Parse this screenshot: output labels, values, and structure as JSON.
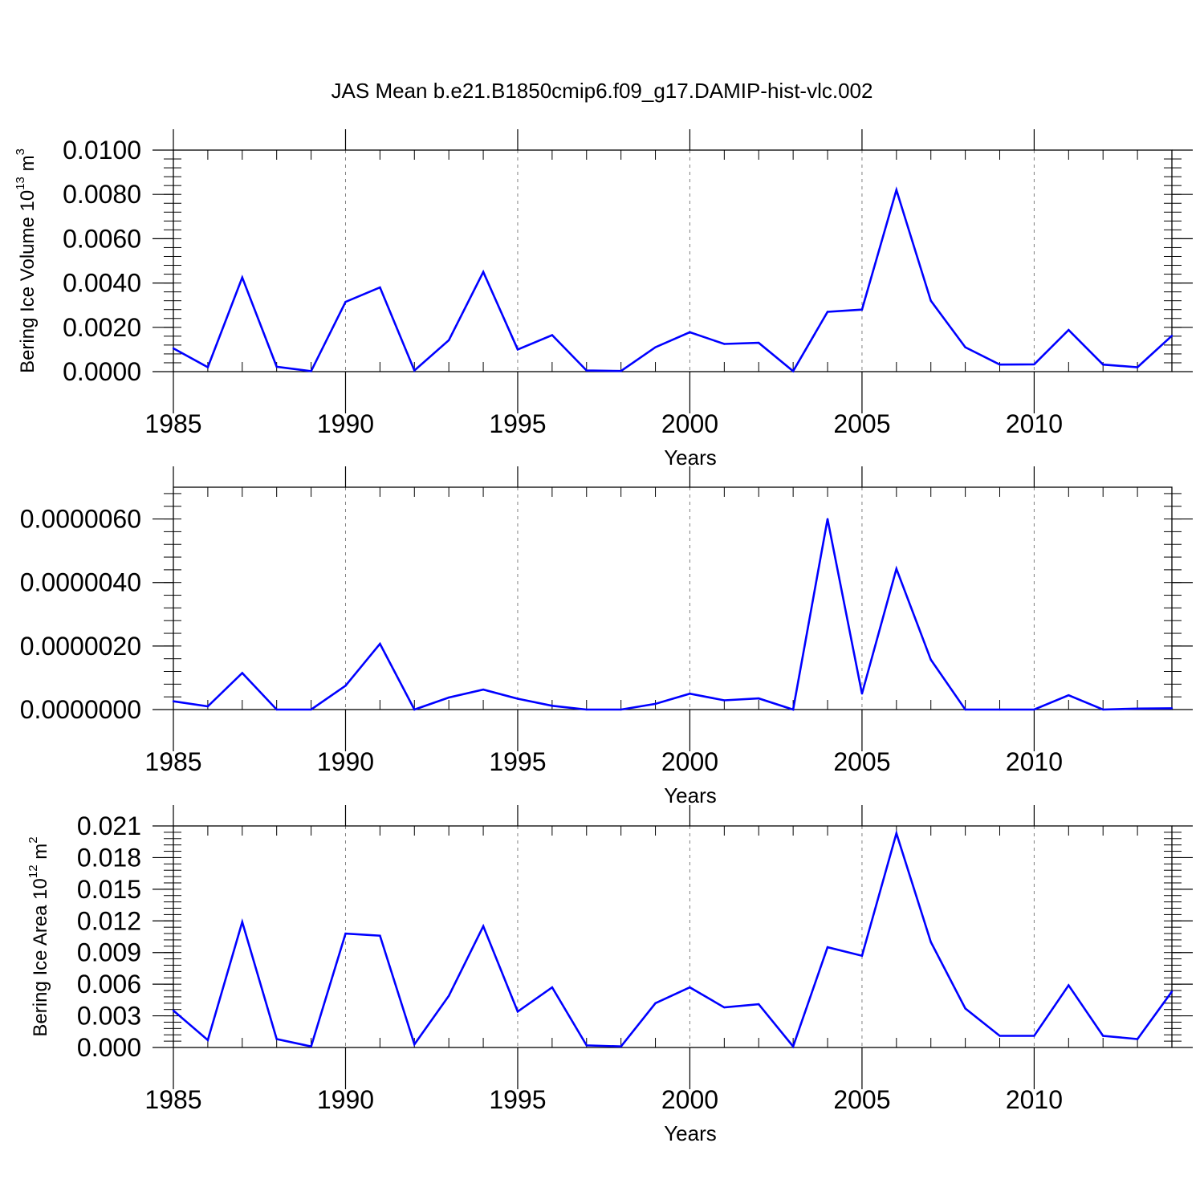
{
  "title": "JAS Mean b.e21.B1850cmip6.f09_g17.DAMIP-hist-vlc.002",
  "colors": {
    "line": "#0000ff",
    "axis": "#000000",
    "grid": "#808080"
  },
  "chart_data": [
    {
      "type": "line",
      "xlabel": "Years",
      "ylabel": {
        "text": "Bering Ice Volume 10",
        "sup": "13",
        "unit": " m",
        "unit_sup": "3"
      },
      "x": [
        1985,
        1986,
        1987,
        1988,
        1989,
        1990,
        1991,
        1992,
        1993,
        1994,
        1995,
        1996,
        1997,
        1998,
        1999,
        2000,
        2001,
        2002,
        2003,
        2004,
        2005,
        2006,
        2007,
        2008,
        2009,
        2010,
        2011,
        2012,
        2013,
        2014
      ],
      "values": [
        0.00105,
        0.0002,
        0.00425,
        0.00022,
        2e-05,
        0.00315,
        0.0038,
        5e-05,
        0.00142,
        0.0045,
        0.001,
        0.00165,
        5e-05,
        3e-05,
        0.0011,
        0.00178,
        0.00125,
        0.0013,
        2e-05,
        0.0027,
        0.0028,
        0.0082,
        0.0032,
        0.0011,
        0.00032,
        0.00033,
        0.00188,
        0.00032,
        0.0002,
        0.00162
      ],
      "xlim": [
        1985,
        2014
      ],
      "ylim": [
        0,
        0.01
      ],
      "xticks": [
        "1985",
        "1990",
        "1995",
        "2000",
        "2005",
        "2010"
      ],
      "yticks": [
        "0.0000",
        "0.0020",
        "0.0040",
        "0.0060",
        "0.0080",
        "0.0100"
      ]
    },
    {
      "type": "line",
      "xlabel": "Years",
      "ylabel": null,
      "x": [
        1985,
        1986,
        1987,
        1988,
        1989,
        1990,
        1991,
        1992,
        1993,
        1994,
        1995,
        1996,
        1997,
        1998,
        1999,
        2000,
        2001,
        2002,
        2003,
        2004,
        2005,
        2006,
        2007,
        2008,
        2009,
        2010,
        2011,
        2012,
        2013,
        2014
      ],
      "values": [
        2.6e-07,
        1e-07,
        1.15e-06,
        0.0,
        0.0,
        7.5e-07,
        2.07e-06,
        0.0,
        3.8e-07,
        6.3e-07,
        3.4e-07,
        1.2e-07,
        0.0,
        0.0,
        1.8e-07,
        5e-07,
        2.9e-07,
        3.5e-07,
        0.0,
        6e-06,
        5e-07,
        4.43e-06,
        1.57e-06,
        0.0,
        0.0,
        0.0,
        4.5e-07,
        0.0,
        3e-08,
        4e-08
      ],
      "xlim": [
        1985,
        2014
      ],
      "ylim": [
        0,
        7e-06
      ],
      "xticks": [
        "1985",
        "1990",
        "1995",
        "2000",
        "2005",
        "2010"
      ],
      "yticks": [
        "0.0000000",
        "0.0000020",
        "0.0000040",
        "0.0000060"
      ]
    },
    {
      "type": "line",
      "xlabel": "Years",
      "ylabel": {
        "text": "Bering Ice Area 10",
        "sup": "12",
        "unit": " m",
        "unit_sup": "2"
      },
      "x": [
        1985,
        1986,
        1987,
        1988,
        1989,
        1990,
        1991,
        1992,
        1993,
        1994,
        1995,
        1996,
        1997,
        1998,
        1999,
        2000,
        2001,
        2002,
        2003,
        2004,
        2005,
        2006,
        2007,
        2008,
        2009,
        2010,
        2011,
        2012,
        2013,
        2014
      ],
      "values": [
        0.0035,
        0.0007,
        0.0119,
        0.0008,
        0.0001,
        0.0108,
        0.0106,
        0.0003,
        0.0049,
        0.0115,
        0.0034,
        0.0057,
        0.0002,
        0.0001,
        0.0042,
        0.0057,
        0.0038,
        0.0041,
        0.0001,
        0.0095,
        0.0087,
        0.0203,
        0.01,
        0.0037,
        0.0011,
        0.0011,
        0.0059,
        0.0011,
        0.0008,
        0.0053
      ],
      "xlim": [
        1985,
        2014
      ],
      "ylim": [
        0,
        0.021
      ],
      "xticks": [
        "1985",
        "1990",
        "1995",
        "2000",
        "2005",
        "2010"
      ],
      "yticks": [
        "0.000",
        "0.003",
        "0.006",
        "0.009",
        "0.012",
        "0.015",
        "0.018",
        "0.021"
      ]
    }
  ]
}
